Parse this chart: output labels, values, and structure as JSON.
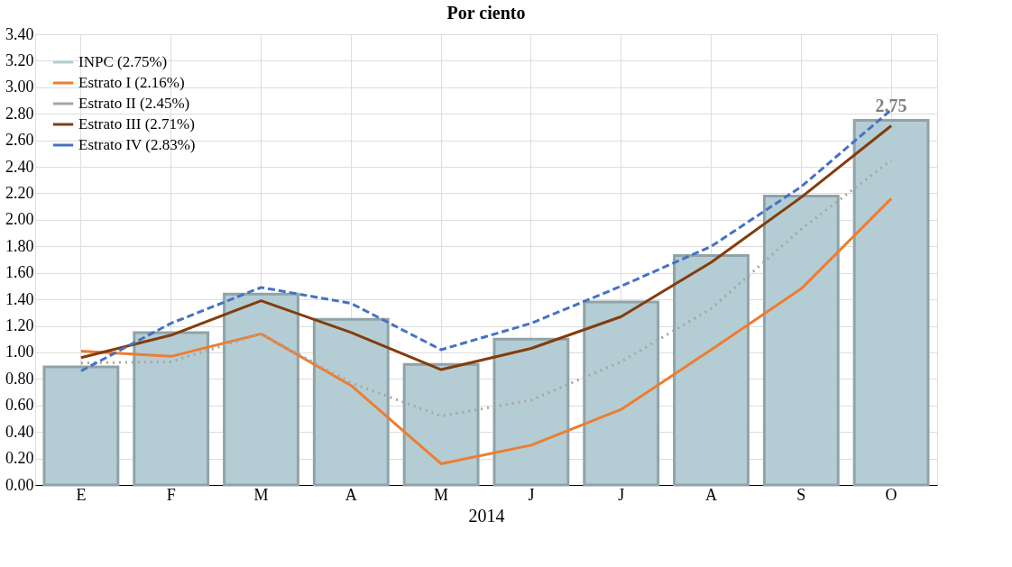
{
  "chart_data": {
    "type": "bar",
    "title": "Por ciento",
    "xlabel": "2014",
    "categories": [
      "E",
      "F",
      "M",
      "A",
      "M",
      "J",
      "J",
      "A",
      "S",
      "O"
    ],
    "series": [
      {
        "name": "INPC (2.75%)",
        "color": "#b4cdd4",
        "values": [
          0.89,
          1.15,
          1.44,
          1.25,
          0.91,
          1.1,
          1.38,
          1.73,
          2.18,
          2.75
        ]
      },
      {
        "name": "Estrato I (2.16%)",
        "type": "line",
        "line_style": "solid",
        "color": "#ed7d31",
        "values": [
          1.01,
          0.97,
          1.14,
          0.75,
          0.16,
          0.3,
          0.57,
          1.02,
          1.48,
          2.16
        ]
      },
      {
        "name": "Estrato II (2.45%)",
        "type": "line",
        "line_style": "dotted",
        "color": "#a5a5a5",
        "values": [
          0.92,
          0.93,
          1.14,
          0.77,
          0.52,
          0.64,
          0.93,
          1.33,
          1.93,
          2.45
        ]
      },
      {
        "name": "Estrato III (2.71%)",
        "type": "line",
        "line_style": "solid",
        "color": "#843c0c",
        "values": [
          0.96,
          1.13,
          1.39,
          1.15,
          0.87,
          1.03,
          1.27,
          1.68,
          2.17,
          2.71
        ]
      },
      {
        "name": "Estrato IV (2.83%)",
        "type": "line",
        "line_style": "dashed",
        "color": "#4472c4",
        "values": [
          0.86,
          1.22,
          1.49,
          1.37,
          1.02,
          1.22,
          1.5,
          1.8,
          2.25,
          2.83
        ]
      }
    ],
    "ylim": [
      0,
      3.4
    ],
    "yticks": [
      {
        "value": 0,
        "label": "0.00"
      },
      {
        "value": 0.2,
        "label": "0.20"
      },
      {
        "value": 0.4,
        "label": "0.40"
      },
      {
        "value": 0.6,
        "label": "0.60"
      },
      {
        "value": 0.8,
        "label": "0.80"
      },
      {
        "value": 1,
        "label": "1.00"
      },
      {
        "value": 1.2,
        "label": "1.20"
      },
      {
        "value": 1.4,
        "label": "1.40"
      },
      {
        "value": 1.6,
        "label": "1.60"
      },
      {
        "value": 1.8,
        "label": "1.80"
      },
      {
        "value": 2,
        "label": "2.00"
      },
      {
        "value": 2.2,
        "label": "2.20"
      },
      {
        "value": 2.4,
        "label": "2.40"
      },
      {
        "value": 2.6,
        "label": "2.60"
      },
      {
        "value": 2.8,
        "label": "2.80"
      },
      {
        "value": 3,
        "label": "3.00"
      },
      {
        "value": 3.2,
        "label": "3.20"
      },
      {
        "value": 3.4,
        "label": "3.40"
      }
    ],
    "annotations": [
      {
        "text": "2.75",
        "x": "O",
        "y": 2.75
      }
    ],
    "grid": true,
    "legend": "top left",
    "marker": "none"
  }
}
